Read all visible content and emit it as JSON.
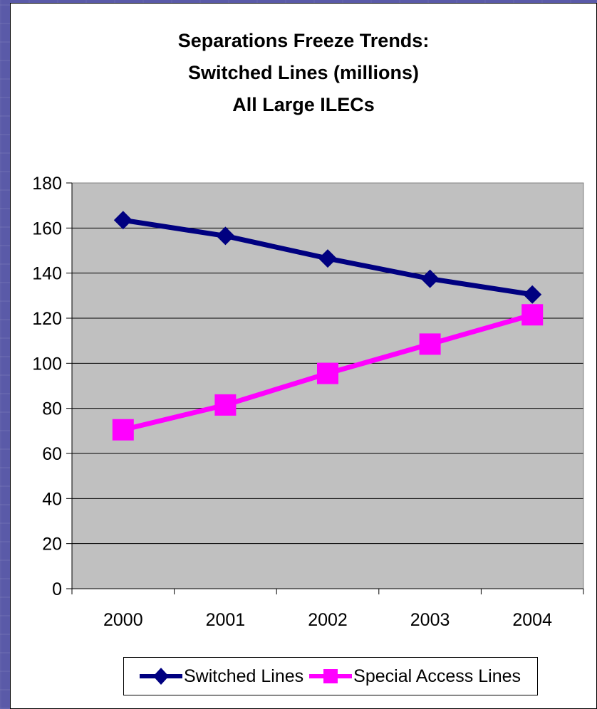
{
  "chart_data": {
    "type": "line",
    "title_lines": [
      "Separations Freeze Trends:",
      "Switched Lines (millions)",
      "All Large ILECs"
    ],
    "categories": [
      "2000",
      "2001",
      "2002",
      "2003",
      "2004"
    ],
    "ylim": [
      0,
      180
    ],
    "yticks": [
      0,
      20,
      40,
      60,
      80,
      100,
      120,
      140,
      160,
      180
    ],
    "grid": true,
    "plot_background": "#c0c0c0",
    "legend_position": "bottom",
    "series": [
      {
        "name": "Switched Lines",
        "values": [
          163.5,
          156.5,
          146.5,
          137.5,
          130.5
        ],
        "color": "#000080",
        "marker": "diamond"
      },
      {
        "name": "Special Access Lines",
        "values": [
          70.5,
          81.5,
          95.5,
          108.5,
          121.5
        ],
        "color": "#ff00ff",
        "marker": "square"
      }
    ]
  }
}
